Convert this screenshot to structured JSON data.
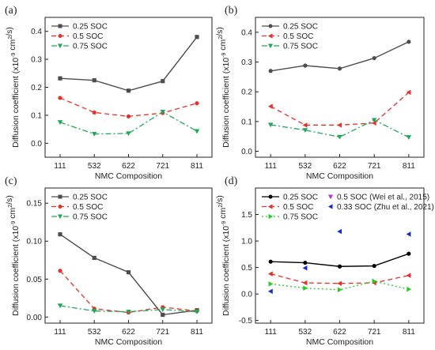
{
  "colors": {
    "soc025": "#4d4d4d",
    "soc05": "#e8302a",
    "soc075": "#20a85a",
    "soc025_d": "#000000",
    "soc05_d": "#e8302a",
    "soc075_d": "#22cc22",
    "wei": "#b830d8",
    "zhu": "#1a2bcc"
  },
  "chart_data": [
    {
      "panel": "(a)",
      "type": "line",
      "categories": [
        "111",
        "532",
        "622",
        "721",
        "811"
      ],
      "xlabel": "NMC Composition",
      "ylabel": "Diffusion coefficient (x10",
      "ylabel_exp": "-9",
      "ylabel_unit": " cm",
      "ylabel_unit_exp": "2",
      "ylabel_tail": "/s)",
      "ylim": [
        -0.05,
        0.45
      ],
      "yticks": [
        0.0,
        0.1,
        0.2,
        0.3,
        0.4
      ],
      "ytick_labels": [
        "0.0",
        "0.1",
        "0.2",
        "0.3",
        "0.4"
      ],
      "legend_position": "top-left",
      "series": [
        {
          "name": "0.25 SOC",
          "values": [
            0.232,
            0.225,
            0.188,
            0.222,
            0.38
          ],
          "style": "solid",
          "marker": "square",
          "color_key": "soc025"
        },
        {
          "name": "0.5 SOC",
          "values": [
            0.162,
            0.11,
            0.096,
            0.108,
            0.143
          ],
          "style": "dashed",
          "marker": "circle",
          "color_key": "soc05"
        },
        {
          "name": "0.75 SOC",
          "values": [
            0.075,
            0.033,
            0.035,
            0.112,
            0.043
          ],
          "style": "dashdot",
          "marker": "triangle-down",
          "color_key": "soc075"
        }
      ],
      "extra_points": []
    },
    {
      "panel": "(b)",
      "type": "line",
      "categories": [
        "111",
        "532",
        "622",
        "721",
        "811"
      ],
      "xlabel": "NMC Composition",
      "ylabel": "Diffusion coefficient (x10",
      "ylabel_exp": "-9",
      "ylabel_unit": " cm",
      "ylabel_unit_exp": "2",
      "ylabel_tail": "/s)",
      "ylim": [
        -0.02,
        0.45
      ],
      "yticks": [
        0.0,
        0.1,
        0.2,
        0.3,
        0.4
      ],
      "ytick_labels": [
        "0.0",
        "0.1",
        "0.2",
        "0.3",
        "0.4"
      ],
      "legend_position": "top-left",
      "series": [
        {
          "name": "0.25 SOC",
          "values": [
            0.27,
            0.288,
            0.278,
            0.313,
            0.368
          ],
          "style": "solid",
          "marker": "circle",
          "color_key": "soc025"
        },
        {
          "name": "0.5 SOC",
          "values": [
            0.151,
            0.088,
            0.088,
            0.095,
            0.198
          ],
          "style": "dashed",
          "marker": "triangle-left",
          "color_key": "soc05"
        },
        {
          "name": "0.75 SOC",
          "values": [
            0.089,
            0.071,
            0.048,
            0.105,
            0.047
          ],
          "style": "dashdot",
          "marker": "triangle-down",
          "color_key": "soc075"
        }
      ],
      "extra_points": []
    },
    {
      "panel": "(c)",
      "type": "line",
      "categories": [
        "111",
        "532",
        "622",
        "721",
        "811"
      ],
      "xlabel": "NMC Composition",
      "ylabel": "Diffusion coefficient (x10",
      "ylabel_exp": "-9",
      "ylabel_unit": " cm",
      "ylabel_unit_exp": "2",
      "ylabel_tail": "/s)",
      "ylim": [
        -0.008,
        0.17
      ],
      "yticks": [
        0.0,
        0.05,
        0.1,
        0.15
      ],
      "ytick_labels": [
        "0.00",
        "0.05",
        "0.10",
        "0.15"
      ],
      "legend_position": "top-left",
      "series": [
        {
          "name": "0.25 SOC",
          "values": [
            0.109,
            0.078,
            0.059,
            0.003,
            0.009
          ],
          "style": "solid",
          "marker": "square",
          "color_key": "soc025"
        },
        {
          "name": "0.5 SOC",
          "values": [
            0.061,
            0.011,
            0.006,
            0.013,
            0.008
          ],
          "style": "dashed",
          "marker": "circle",
          "color_key": "soc05"
        },
        {
          "name": "0.75 SOC",
          "values": [
            0.015,
            0.008,
            0.007,
            0.01,
            0.007
          ],
          "style": "dashdot",
          "marker": "triangle-down",
          "color_key": "soc075"
        }
      ],
      "extra_points": []
    },
    {
      "panel": "(d)",
      "type": "line",
      "categories": [
        "111",
        "532",
        "622",
        "721",
        "811"
      ],
      "xlabel": "NMC Composition",
      "ylabel": "Diffusion coefficient (x10",
      "ylabel_exp": "-9",
      "ylabel_unit": " cm",
      "ylabel_unit_exp": "2",
      "ylabel_tail": "/s)",
      "ylim": [
        -0.55,
        2.0
      ],
      "yticks": [
        -0.5,
        0.0,
        0.5,
        1.0,
        1.5
      ],
      "ytick_labels": [
        "-0.5",
        "0.0",
        "0.5",
        "1.0",
        "1.5"
      ],
      "legend_position": "top-left",
      "series": [
        {
          "name": "0.25 SOC",
          "values": [
            0.61,
            0.59,
            0.52,
            0.53,
            0.76
          ],
          "style": "solid",
          "marker": "circle",
          "color_key": "soc025_d"
        },
        {
          "name": "0.5 SOC",
          "values": [
            0.38,
            0.21,
            0.2,
            0.21,
            0.35
          ],
          "style": "dashed",
          "marker": "triangle-left",
          "color_key": "soc05_d"
        },
        {
          "name": "0.75 SOC",
          "values": [
            0.19,
            0.11,
            0.08,
            0.24,
            0.09
          ],
          "style": "dotted",
          "marker": "triangle-right",
          "color_key": "soc075_d"
        }
      ],
      "extra_points": [
        {
          "name": "0.5 SOC (Wei et al., 2015)",
          "marker": "triangle-down",
          "color_key": "wei",
          "points": []
        },
        {
          "name": "0.33 SOC (Zhu et al., 2021)",
          "marker": "triangle-left",
          "color_key": "zhu",
          "points": [
            [
              "111",
              0.05
            ],
            [
              "532",
              0.49
            ],
            [
              "622",
              1.18
            ],
            [
              "811",
              1.13
            ]
          ]
        }
      ]
    }
  ]
}
